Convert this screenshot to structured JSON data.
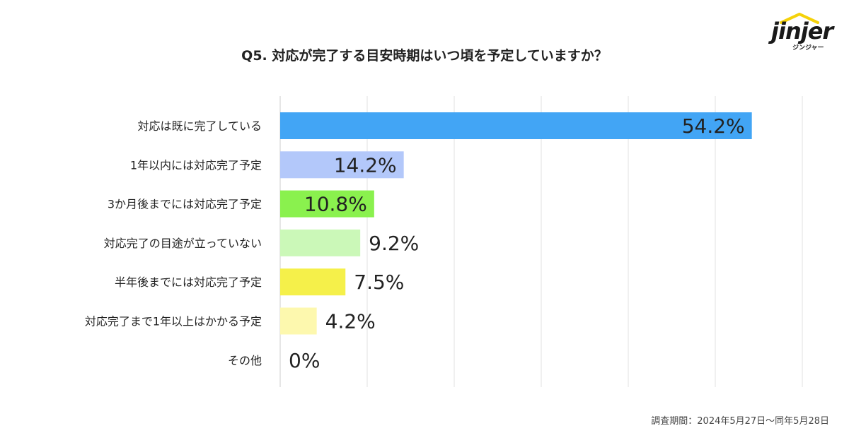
{
  "logo": {
    "word": "jinjer",
    "sub": "ジンジャー",
    "accent": "#f5d20a"
  },
  "title": "Q5. 対応が完了する目安時期はいつ頃を予定していますか？",
  "footnote": "調査期間：2024年5月27日〜同年5月28日",
  "chart_data": {
    "type": "bar",
    "orientation": "horizontal",
    "title": "Q5. 対応が完了する目安時期はいつ頃を予定していますか？",
    "xlabel": "",
    "ylabel": "",
    "xlim": [
      0,
      60
    ],
    "grid": true,
    "categories": [
      "対応は既に完了している",
      "1年以内には対応完了予定",
      "3か月後までには対応完了予定",
      "対応完了の目途が立っていない",
      "半年後までには対応完了予定",
      "対応完了まで1年以上はかかる予定",
      "その他"
    ],
    "values": [
      54.2,
      14.2,
      10.8,
      9.2,
      7.5,
      4.2,
      0
    ],
    "value_labels": [
      "54.2%",
      "14.2%",
      "10.8%",
      "9.2%",
      "7.5%",
      "4.2%",
      "0%"
    ],
    "colors": [
      "#42a5f5",
      "#b3c8fa",
      "#8af14e",
      "#cbf8b8",
      "#f5f04a",
      "#fdf8ae",
      "#ffffff"
    ]
  }
}
